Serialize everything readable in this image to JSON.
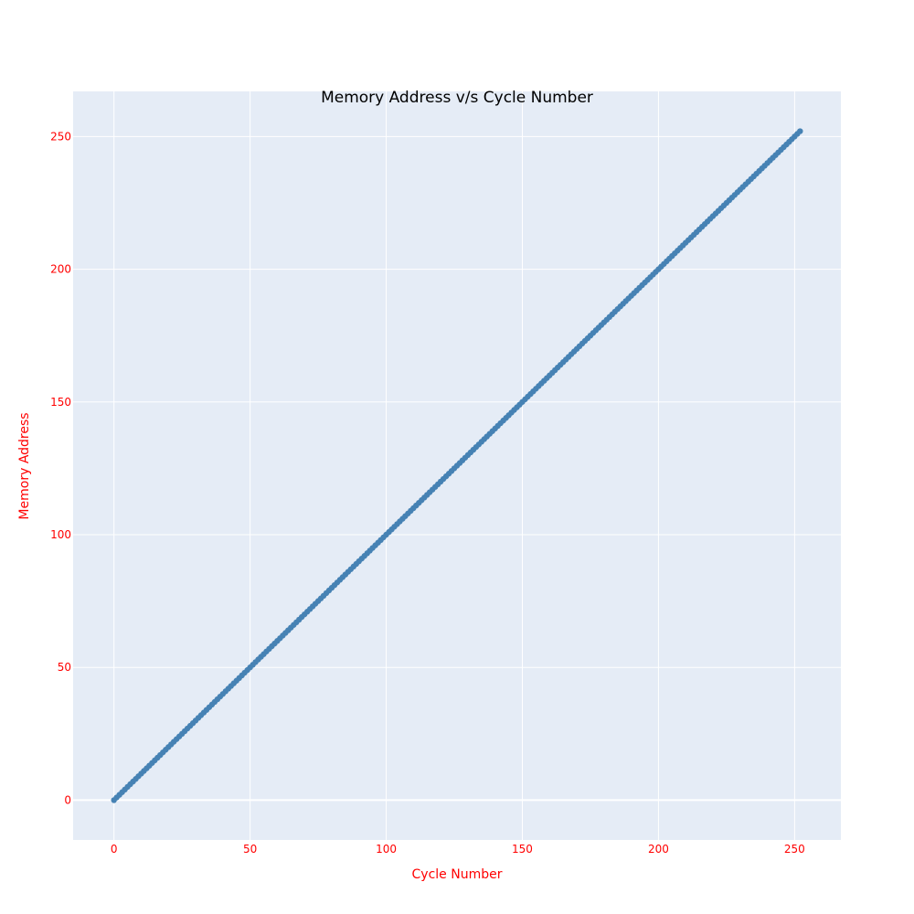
{
  "chart_data": {
    "type": "scatter",
    "title": "Memory Address v/s Cycle Number",
    "xlabel": "Cycle Number",
    "ylabel": "Memory Address",
    "xlim": [
      -15,
      267
    ],
    "ylim": [
      -15,
      267
    ],
    "x_ticks": [
      0,
      50,
      100,
      150,
      200,
      250
    ],
    "y_ticks": [
      0,
      50,
      100,
      150,
      200,
      250
    ],
    "grid": true,
    "series": [
      {
        "x_start": 0,
        "x_end": 252,
        "x_step": 1,
        "relation": "y = x",
        "color": "#4682b4"
      }
    ],
    "colors": {
      "plot_background": "#e5ecf6",
      "gridline": "#ffffff",
      "label_text": "#ff0000",
      "title_text": "#000000"
    }
  }
}
